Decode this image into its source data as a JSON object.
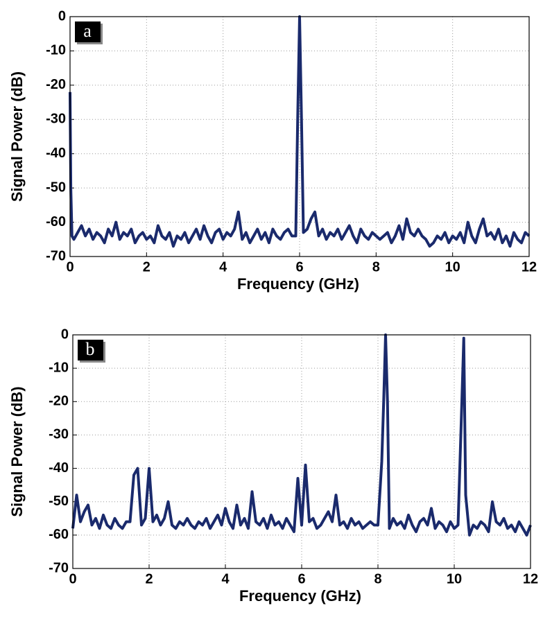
{
  "chart_data": [
    {
      "type": "line",
      "annotation": "a",
      "xlabel": "Frequency (GHz)",
      "ylabel": "Signal Power (dB)",
      "color": "#1a2a6c",
      "grid": true,
      "xlim": [
        0,
        12
      ],
      "xticks": [
        0,
        2,
        4,
        6,
        8,
        10,
        12
      ],
      "ylim": [
        -70,
        0
      ],
      "yticks": [
        0,
        -10,
        -20,
        -30,
        -40,
        -50,
        -60,
        -70
      ],
      "x": [
        0,
        0.02,
        0.05,
        0.1,
        0.2,
        0.3,
        0.4,
        0.5,
        0.6,
        0.7,
        0.8,
        0.9,
        1.0,
        1.1,
        1.2,
        1.3,
        1.4,
        1.5,
        1.6,
        1.7,
        1.8,
        1.9,
        2.0,
        2.1,
        2.2,
        2.3,
        2.4,
        2.5,
        2.6,
        2.7,
        2.8,
        2.9,
        3.0,
        3.1,
        3.2,
        3.3,
        3.4,
        3.5,
        3.6,
        3.7,
        3.8,
        3.9,
        4.0,
        4.1,
        4.2,
        4.3,
        4.4,
        4.5,
        4.6,
        4.7,
        4.8,
        4.9,
        5.0,
        5.1,
        5.2,
        5.3,
        5.4,
        5.5,
        5.6,
        5.7,
        5.8,
        5.9,
        5.95,
        6,
        6.05,
        6.1,
        6.2,
        6.3,
        6.4,
        6.5,
        6.6,
        6.7,
        6.8,
        6.9,
        7.0,
        7.1,
        7.2,
        7.3,
        7.4,
        7.5,
        7.6,
        7.7,
        7.8,
        7.9,
        8.0,
        8.1,
        8.2,
        8.3,
        8.4,
        8.5,
        8.6,
        8.7,
        8.8,
        8.9,
        9.0,
        9.1,
        9.2,
        9.3,
        9.4,
        9.5,
        9.6,
        9.7,
        9.8,
        9.9,
        10.0,
        10.1,
        10.2,
        10.3,
        10.4,
        10.5,
        10.6,
        10.7,
        10.8,
        10.9,
        11.0,
        11.1,
        11.2,
        11.3,
        11.4,
        11.5,
        11.6,
        11.7,
        11.8,
        11.9,
        12.0
      ],
      "values": [
        -22,
        -50,
        -64,
        -65,
        -63,
        -61,
        -64,
        -62,
        -65,
        -63,
        -64,
        -66,
        -62,
        -64,
        -60,
        -65,
        -63,
        -64,
        -62,
        -66,
        -64,
        -63,
        -65,
        -64,
        -66,
        -61,
        -64,
        -65,
        -63,
        -67,
        -64,
        -65,
        -63,
        -66,
        -64,
        -62,
        -65,
        -61,
        -64,
        -66,
        -63,
        -62,
        -65,
        -63,
        -64,
        -62,
        -57,
        -65,
        -63,
        -66,
        -64,
        -62,
        -65,
        -63,
        -66,
        -62,
        -64,
        -65,
        -63,
        -62,
        -64,
        -64,
        -30,
        0,
        -30,
        -63,
        -62,
        -59,
        -57,
        -64,
        -62,
        -65,
        -63,
        -64,
        -62,
        -65,
        -63,
        -61,
        -64,
        -66,
        -62,
        -64,
        -65,
        -63,
        -64,
        -65,
        -64,
        -63,
        -66,
        -64,
        -61,
        -65,
        -59,
        -63,
        -64,
        -62,
        -64,
        -65,
        -67,
        -66,
        -64,
        -65,
        -63,
        -66,
        -64,
        -65,
        -63,
        -66,
        -60,
        -64,
        -66,
        -62,
        -59,
        -64,
        -63,
        -65,
        -62,
        -66,
        -64,
        -67,
        -63,
        -65,
        -66,
        -63,
        -64
      ]
    },
    {
      "type": "line",
      "annotation": "b",
      "xlabel": "Frequency (GHz)",
      "ylabel": "Signal Power (dB)",
      "color": "#1a2a6c",
      "grid": true,
      "xlim": [
        0,
        12
      ],
      "xticks": [
        0,
        2,
        4,
        6,
        8,
        10,
        12
      ],
      "ylim": [
        -70,
        0
      ],
      "yticks": [
        0,
        -10,
        -20,
        -30,
        -40,
        -50,
        -60,
        -70
      ],
      "x": [
        0,
        0.1,
        0.2,
        0.3,
        0.4,
        0.5,
        0.6,
        0.7,
        0.8,
        0.9,
        1.0,
        1.1,
        1.2,
        1.3,
        1.4,
        1.5,
        1.6,
        1.7,
        1.8,
        1.9,
        2.0,
        2.1,
        2.2,
        2.3,
        2.4,
        2.5,
        2.6,
        2.7,
        2.8,
        2.9,
        3.0,
        3.1,
        3.2,
        3.3,
        3.4,
        3.5,
        3.6,
        3.7,
        3.8,
        3.9,
        4.0,
        4.1,
        4.2,
        4.3,
        4.4,
        4.5,
        4.6,
        4.7,
        4.8,
        4.9,
        5.0,
        5.1,
        5.2,
        5.3,
        5.4,
        5.5,
        5.6,
        5.7,
        5.8,
        5.9,
        6.0,
        6.1,
        6.2,
        6.3,
        6.4,
        6.5,
        6.6,
        6.7,
        6.8,
        6.9,
        7.0,
        7.1,
        7.2,
        7.3,
        7.4,
        7.5,
        7.6,
        7.7,
        7.8,
        7.9,
        8.0,
        8.1,
        8.15,
        8.2,
        8.25,
        8.3,
        8.4,
        8.5,
        8.6,
        8.7,
        8.8,
        8.9,
        9.0,
        9.1,
        9.2,
        9.3,
        9.4,
        9.5,
        9.6,
        9.7,
        9.8,
        9.9,
        10.0,
        10.1,
        10.2,
        10.25,
        10.3,
        10.4,
        10.5,
        10.6,
        10.7,
        10.8,
        10.9,
        11.0,
        11.1,
        11.2,
        11.3,
        11.4,
        11.5,
        11.6,
        11.7,
        11.8,
        11.9,
        12.0
      ],
      "values": [
        -58,
        -48,
        -56,
        -53,
        -51,
        -57,
        -55,
        -58,
        -54,
        -57,
        -58,
        -55,
        -57,
        -58,
        -56,
        -56,
        -42,
        -40,
        -57,
        -55,
        -40,
        -56,
        -54,
        -57,
        -55,
        -50,
        -57,
        -58,
        -56,
        -57,
        -55,
        -57,
        -58,
        -56,
        -57,
        -55,
        -58,
        -56,
        -54,
        -57,
        -52,
        -56,
        -58,
        -51,
        -57,
        -55,
        -58,
        -47,
        -56,
        -57,
        -55,
        -58,
        -54,
        -57,
        -56,
        -58,
        -55,
        -57,
        -59,
        -43,
        -57,
        -39,
        -56,
        -55,
        -58,
        -57,
        -55,
        -53,
        -56,
        -48,
        -57,
        -56,
        -58,
        -55,
        -57,
        -56,
        -58,
        -57,
        -56,
        -57,
        -57,
        -38,
        -20,
        0,
        -20,
        -58,
        -55,
        -57,
        -56,
        -58,
        -54,
        -57,
        -59,
        -56,
        -55,
        -57,
        -52,
        -58,
        -56,
        -57,
        -59,
        -56,
        -58,
        -57,
        -20,
        -1,
        -48,
        -60,
        -57,
        -58,
        -56,
        -57,
        -59,
        -50,
        -56,
        -57,
        -55,
        -58,
        -57,
        -59,
        -56,
        -58,
        -60,
        -57
      ]
    }
  ]
}
